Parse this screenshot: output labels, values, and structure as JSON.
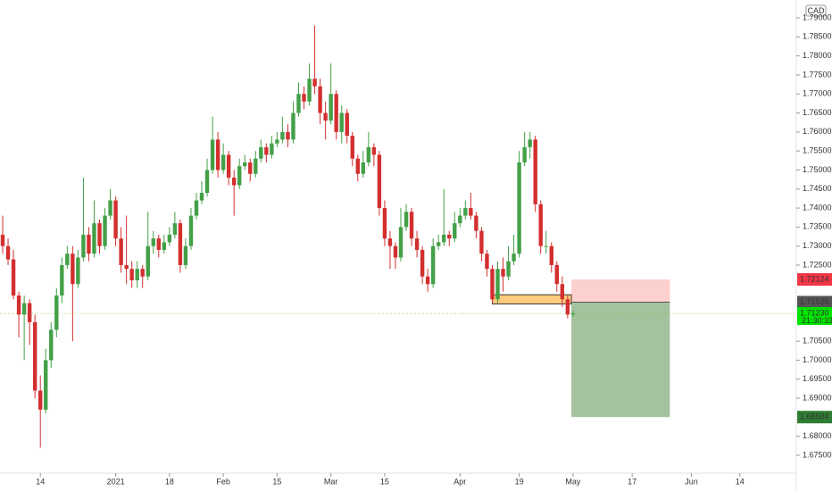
{
  "chart_data": {
    "type": "candlestick",
    "currency": "CAD",
    "up_color": "#43a047",
    "down_color": "#d32f2f",
    "ylim": [
      1.6703,
      1.7947
    ],
    "yticks": [
      {
        "value": 1.79,
        "label": "1.79000"
      },
      {
        "value": 1.785,
        "label": "1.78500"
      },
      {
        "value": 1.78,
        "label": "1.78000"
      },
      {
        "value": 1.775,
        "label": "1.77500"
      },
      {
        "value": 1.77,
        "label": "1.77000"
      },
      {
        "value": 1.765,
        "label": "1.76500"
      },
      {
        "value": 1.76,
        "label": "1.76000"
      },
      {
        "value": 1.755,
        "label": "1.75500"
      },
      {
        "value": 1.75,
        "label": "1.75000"
      },
      {
        "value": 1.745,
        "label": "1.74500"
      },
      {
        "value": 1.74,
        "label": "1.74000"
      },
      {
        "value": 1.735,
        "label": "1.73500"
      },
      {
        "value": 1.73,
        "label": "1.73000"
      },
      {
        "value": 1.725,
        "label": "1.72500"
      },
      {
        "value": 1.705,
        "label": "1.70500"
      },
      {
        "value": 1.7,
        "label": "1.70000"
      },
      {
        "value": 1.695,
        "label": "1.69500"
      },
      {
        "value": 1.69,
        "label": "1.69000"
      },
      {
        "value": 1.68,
        "label": "1.68000"
      },
      {
        "value": 1.675,
        "label": "1.67500"
      }
    ],
    "xlim": [
      -0.5,
      147.5
    ],
    "xticks": [
      {
        "value": 7,
        "label": "14"
      },
      {
        "value": 21,
        "label": "2021"
      },
      {
        "value": 31,
        "label": "18"
      },
      {
        "value": 41,
        "label": "Feb"
      },
      {
        "value": 51,
        "label": "15"
      },
      {
        "value": 61,
        "label": "Mar"
      },
      {
        "value": 71,
        "label": "15"
      },
      {
        "value": 85,
        "label": "Apr"
      },
      {
        "value": 96,
        "label": "19"
      },
      {
        "value": 106,
        "label": "May"
      },
      {
        "value": 117,
        "label": "17"
      },
      {
        "value": 128,
        "label": "Jun"
      },
      {
        "value": 137,
        "label": "14"
      }
    ],
    "candles": [
      [
        1.733,
        1.738,
        1.728,
        1.73
      ],
      [
        1.73,
        1.732,
        1.725,
        1.7265
      ],
      [
        1.7265,
        1.729,
        1.716,
        1.717
      ],
      [
        1.717,
        1.718,
        1.706,
        1.712
      ],
      [
        1.712,
        1.717,
        1.7,
        1.715
      ],
      [
        1.715,
        1.716,
        1.704,
        1.71
      ],
      [
        1.71,
        1.712,
        1.69,
        1.692
      ],
      [
        1.692,
        1.696,
        1.677,
        1.687
      ],
      [
        1.687,
        1.703,
        1.686,
        1.7
      ],
      [
        1.7,
        1.71,
        1.698,
        1.708
      ],
      [
        1.708,
        1.719,
        1.706,
        1.717
      ],
      [
        1.717,
        1.727,
        1.715,
        1.725
      ],
      [
        1.725,
        1.73,
        1.724,
        1.728
      ],
      [
        1.728,
        1.73,
        1.705,
        1.72
      ],
      [
        1.72,
        1.729,
        1.719,
        1.727
      ],
      [
        1.727,
        1.748,
        1.726,
        1.733
      ],
      [
        1.733,
        1.735,
        1.726,
        1.728
      ],
      [
        1.728,
        1.742,
        1.727,
        1.736
      ],
      [
        1.736,
        1.737,
        1.728,
        1.73
      ],
      [
        1.73,
        1.74,
        1.729,
        1.738
      ],
      [
        1.738,
        1.745,
        1.737,
        1.742
      ],
      [
        1.742,
        1.743,
        1.73,
        1.732
      ],
      [
        1.732,
        1.735,
        1.723,
        1.725
      ],
      [
        1.725,
        1.738,
        1.72,
        1.724
      ],
      [
        1.724,
        1.726,
        1.719,
        1.721
      ],
      [
        1.721,
        1.726,
        1.719,
        1.724
      ],
      [
        1.724,
        1.725,
        1.719,
        1.722
      ],
      [
        1.722,
        1.739,
        1.721,
        1.73
      ],
      [
        1.73,
        1.734,
        1.728,
        1.732
      ],
      [
        1.732,
        1.733,
        1.727,
        1.729
      ],
      [
        1.729,
        1.733,
        1.728,
        1.731
      ],
      [
        1.731,
        1.735,
        1.73,
        1.733
      ],
      [
        1.733,
        1.739,
        1.732,
        1.736
      ],
      [
        1.736,
        1.737,
        1.723,
        1.725
      ],
      [
        1.725,
        1.732,
        1.724,
        1.73
      ],
      [
        1.73,
        1.74,
        1.729,
        1.738
      ],
      [
        1.738,
        1.744,
        1.737,
        1.742
      ],
      [
        1.742,
        1.747,
        1.741,
        1.744
      ],
      [
        1.744,
        1.753,
        1.743,
        1.75
      ],
      [
        1.75,
        1.764,
        1.749,
        1.758
      ],
      [
        1.758,
        1.76,
        1.748,
        1.75
      ],
      [
        1.75,
        1.757,
        1.749,
        1.754
      ],
      [
        1.754,
        1.755,
        1.746,
        1.748
      ],
      [
        1.748,
        1.75,
        1.738,
        1.746
      ],
      [
        1.746,
        1.753,
        1.745,
        1.751
      ],
      [
        1.751,
        1.754,
        1.75,
        1.752
      ],
      [
        1.752,
        1.753,
        1.747,
        1.749
      ],
      [
        1.749,
        1.755,
        1.748,
        1.753
      ],
      [
        1.753,
        1.758,
        1.752,
        1.756
      ],
      [
        1.756,
        1.757,
        1.752,
        1.754
      ],
      [
        1.754,
        1.759,
        1.753,
        1.757
      ],
      [
        1.757,
        1.76,
        1.756,
        1.758
      ],
      [
        1.758,
        1.764,
        1.757,
        1.76
      ],
      [
        1.76,
        1.762,
        1.756,
        1.758
      ],
      [
        1.758,
        1.768,
        1.757,
        1.765
      ],
      [
        1.765,
        1.773,
        1.764,
        1.77
      ],
      [
        1.77,
        1.772,
        1.766,
        1.768
      ],
      [
        1.768,
        1.778,
        1.767,
        1.774
      ],
      [
        1.774,
        1.788,
        1.77,
        1.772
      ],
      [
        1.772,
        1.774,
        1.762,
        1.765
      ],
      [
        1.765,
        1.768,
        1.758,
        1.763
      ],
      [
        1.763,
        1.778,
        1.762,
        1.77
      ],
      [
        1.77,
        1.771,
        1.758,
        1.76
      ],
      [
        1.76,
        1.767,
        1.757,
        1.765
      ],
      [
        1.765,
        1.766,
        1.757,
        1.759
      ],
      [
        1.759,
        1.76,
        1.751,
        1.753
      ],
      [
        1.753,
        1.754,
        1.747,
        1.749
      ],
      [
        1.749,
        1.755,
        1.748,
        1.752
      ],
      [
        1.752,
        1.76,
        1.751,
        1.756
      ],
      [
        1.756,
        1.757,
        1.751,
        1.754
      ],
      [
        1.754,
        1.755,
        1.738,
        1.74
      ],
      [
        1.74,
        1.742,
        1.73,
        1.732
      ],
      [
        1.732,
        1.734,
        1.724,
        1.73
      ],
      [
        1.73,
        1.731,
        1.724,
        1.727
      ],
      [
        1.727,
        1.74,
        1.726,
        1.735
      ],
      [
        1.735,
        1.741,
        1.734,
        1.739
      ],
      [
        1.739,
        1.74,
        1.73,
        1.732
      ],
      [
        1.732,
        1.734,
        1.727,
        1.729
      ],
      [
        1.729,
        1.73,
        1.72,
        1.722
      ],
      [
        1.722,
        1.724,
        1.718,
        1.72
      ],
      [
        1.72,
        1.732,
        1.719,
        1.73
      ],
      [
        1.73,
        1.733,
        1.729,
        1.731
      ],
      [
        1.731,
        1.745,
        1.73,
        1.733
      ],
      [
        1.733,
        1.734,
        1.73,
        1.732
      ],
      [
        1.732,
        1.739,
        1.731,
        1.736
      ],
      [
        1.736,
        1.74,
        1.735,
        1.738
      ],
      [
        1.738,
        1.742,
        1.737,
        1.74
      ],
      [
        1.74,
        1.744,
        1.737,
        1.738
      ],
      [
        1.738,
        1.739,
        1.732,
        1.734
      ],
      [
        1.734,
        1.735,
        1.726,
        1.728
      ],
      [
        1.728,
        1.729,
        1.722,
        1.724
      ],
      [
        1.724,
        1.725,
        1.715,
        1.716
      ],
      [
        1.716,
        1.726,
        1.715,
        1.724
      ],
      [
        1.724,
        1.727,
        1.718,
        1.722
      ],
      [
        1.722,
        1.73,
        1.721,
        1.726
      ],
      [
        1.726,
        1.733,
        1.725,
        1.728
      ],
      [
        1.728,
        1.755,
        1.727,
        1.752
      ],
      [
        1.752,
        1.76,
        1.751,
        1.756
      ],
      [
        1.756,
        1.76,
        1.753,
        1.758
      ],
      [
        1.758,
        1.759,
        1.739,
        1.741
      ],
      [
        1.741,
        1.742,
        1.728,
        1.73
      ],
      [
        1.73,
        1.734,
        1.728,
        1.73
      ],
      [
        1.73,
        1.731,
        1.723,
        1.725
      ],
      [
        1.725,
        1.726,
        1.718,
        1.72
      ],
      [
        1.72,
        1.722,
        1.714,
        1.716
      ],
      [
        1.716,
        1.717,
        1.711,
        1.712
      ],
      [
        1.712,
        1.713,
        1.7115,
        1.7123
      ]
    ],
    "zone": {
      "x": [
        91,
        105.7
      ],
      "low": 1.7148,
      "high": 1.7172
    },
    "position": {
      "x": [
        105.7,
        124
      ],
      "stop": 1.72124,
      "entry": 1.71526,
      "target": 1.68504
    },
    "last_price": {
      "value": 1.7123,
      "label": "1.71230"
    },
    "countdown": "21:30:33"
  }
}
